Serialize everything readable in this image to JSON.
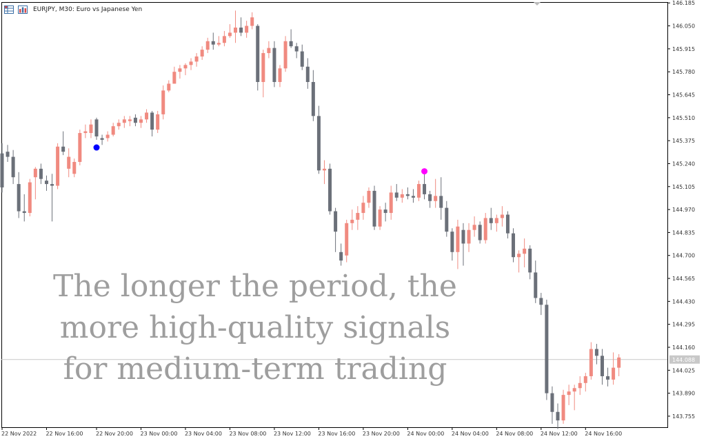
{
  "header": {
    "title": "EURJPY, M30:  Euro vs Japanese Yen",
    "icons": [
      "grid-icon",
      "bar-chart-icon"
    ]
  },
  "overlay_lines": [
    "The longer the period, the",
    "more high-quality signals",
    "for medium-term trading"
  ],
  "colors": {
    "bull": "#f08a80",
    "bear": "#6b7079",
    "buy_signal": "#0000ff",
    "sell_signal": "#ff00ff",
    "price_line": "#c8c8c8"
  },
  "chart_data": {
    "type": "candlestick",
    "symbol": "EURJPY",
    "timeframe": "M30",
    "ylim": [
      143.69,
      146.19
    ],
    "y_ticks": [
      "146.185",
      "146.050",
      "145.915",
      "145.780",
      "145.645",
      "145.510",
      "145.375",
      "145.240",
      "145.105",
      "144.970",
      "144.835",
      "144.700",
      "144.565",
      "144.430",
      "144.295",
      "144.160",
      "144.025",
      "143.890",
      "143.755"
    ],
    "current_price": "144.088",
    "x_ticks": [
      {
        "index": 0,
        "label": "22 Nov 2022"
      },
      {
        "index": 8,
        "label": "22 Nov 16:00"
      },
      {
        "index": 17,
        "label": "22 Nov 20:00"
      },
      {
        "index": 25,
        "label": "23 Nov 00:00"
      },
      {
        "index": 33,
        "label": "23 Nov 04:00"
      },
      {
        "index": 41,
        "label": "23 Nov 08:00"
      },
      {
        "index": 49,
        "label": "23 Nov 12:00"
      },
      {
        "index": 57,
        "label": "23 Nov 16:00"
      },
      {
        "index": 65,
        "label": "23 Nov 20:00"
      },
      {
        "index": 73,
        "label": "24 Nov 00:00"
      },
      {
        "index": 81,
        "label": "24 Nov 04:00"
      },
      {
        "index": 89,
        "label": "24 Nov 08:00"
      },
      {
        "index": 97,
        "label": "24 Nov 12:00"
      },
      {
        "index": 105,
        "label": "24 Nov 16:00"
      }
    ],
    "candles": [
      [
        145.3,
        145.36,
        145.07,
        145.1
      ],
      [
        145.31,
        145.35,
        145.25,
        145.28
      ],
      [
        145.28,
        145.32,
        145.12,
        145.16
      ],
      [
        145.12,
        145.19,
        144.92,
        144.96
      ],
      [
        144.96,
        145.06,
        144.9,
        144.95
      ],
      [
        144.95,
        145.15,
        144.93,
        145.13
      ],
      [
        145.16,
        145.22,
        145.03,
        145.21
      ],
      [
        145.21,
        145.24,
        145.12,
        145.15
      ],
      [
        145.14,
        145.17,
        145.08,
        145.12
      ],
      [
        145.12,
        145.18,
        144.9,
        145.11
      ],
      [
        145.11,
        145.36,
        145.09,
        145.34
      ],
      [
        145.34,
        145.43,
        145.29,
        145.31
      ],
      [
        145.21,
        145.33,
        145.16,
        145.28
      ],
      [
        145.18,
        145.27,
        145.16,
        145.25
      ],
      [
        145.25,
        145.44,
        145.23,
        145.42
      ],
      [
        145.42,
        145.47,
        145.39,
        145.43
      ],
      [
        145.42,
        145.5,
        145.39,
        145.47
      ],
      [
        145.5,
        145.51,
        145.38,
        145.4
      ],
      [
        145.39,
        145.41,
        145.35,
        145.38
      ],
      [
        145.39,
        145.43,
        145.37,
        145.41
      ],
      [
        145.41,
        145.48,
        145.4,
        145.46
      ],
      [
        145.46,
        145.5,
        145.44,
        145.48
      ],
      [
        145.48,
        145.52,
        145.45,
        145.5
      ],
      [
        145.49,
        145.52,
        145.46,
        145.5
      ],
      [
        145.51,
        145.53,
        145.46,
        145.48
      ],
      [
        145.48,
        145.52,
        145.45,
        145.5
      ],
      [
        145.5,
        145.56,
        145.48,
        145.54
      ],
      [
        145.54,
        145.55,
        145.4,
        145.44
      ],
      [
        145.44,
        145.55,
        145.42,
        145.53
      ],
      [
        145.53,
        145.7,
        145.5,
        145.67
      ],
      [
        145.67,
        145.73,
        145.66,
        145.71
      ],
      [
        145.71,
        145.81,
        145.71,
        145.78
      ],
      [
        145.78,
        145.82,
        145.74,
        145.8
      ],
      [
        145.8,
        145.83,
        145.76,
        145.82
      ],
      [
        145.82,
        145.86,
        145.79,
        145.84
      ],
      [
        145.84,
        145.89,
        145.81,
        145.87
      ],
      [
        145.87,
        145.93,
        145.85,
        145.91
      ],
      [
        145.91,
        145.98,
        145.89,
        145.96
      ],
      [
        145.96,
        146.01,
        145.91,
        145.94
      ],
      [
        145.94,
        145.99,
        145.93,
        145.95
      ],
      [
        145.95,
        146.02,
        145.93,
        145.99
      ],
      [
        145.99,
        146.06,
        145.98,
        146.01
      ],
      [
        146.01,
        146.14,
        145.95,
        146.04
      ],
      [
        146.04,
        146.1,
        145.99,
        146.01
      ],
      [
        146.01,
        146.08,
        145.98,
        146.05
      ],
      [
        146.05,
        146.13,
        146.03,
        146.1
      ],
      [
        146.05,
        146.06,
        145.67,
        145.72
      ],
      [
        145.72,
        145.91,
        145.63,
        145.89
      ],
      [
        145.89,
        145.96,
        145.86,
        145.92
      ],
      [
        145.92,
        145.96,
        145.69,
        145.72
      ],
      [
        145.72,
        145.82,
        145.69,
        145.8
      ],
      [
        145.8,
        145.99,
        145.78,
        145.96
      ],
      [
        145.96,
        146.03,
        145.92,
        145.93
      ],
      [
        145.93,
        145.95,
        145.86,
        145.9
      ],
      [
        145.9,
        145.94,
        145.79,
        145.81
      ],
      [
        145.81,
        145.86,
        145.68,
        145.72
      ],
      [
        145.72,
        145.79,
        145.49,
        145.52
      ],
      [
        145.52,
        145.58,
        145.18,
        145.2
      ],
      [
        145.2,
        145.26,
        145.12,
        145.21
      ],
      [
        145.21,
        145.24,
        144.94,
        144.96
      ],
      [
        144.96,
        144.98,
        144.72,
        144.84
      ],
      [
        144.72,
        144.77,
        144.64,
        144.67
      ],
      [
        144.7,
        144.91,
        144.66,
        144.89
      ],
      [
        144.89,
        144.97,
        144.85,
        144.91
      ],
      [
        144.91,
        144.99,
        144.85,
        144.95
      ],
      [
        144.95,
        145.05,
        144.91,
        145.01
      ],
      [
        145.01,
        145.1,
        144.98,
        145.08
      ],
      [
        145.08,
        145.11,
        144.85,
        144.87
      ],
      [
        144.87,
        144.99,
        144.85,
        144.97
      ],
      [
        144.97,
        145.01,
        144.9,
        144.95
      ],
      [
        144.95,
        145.11,
        144.91,
        145.07
      ],
      [
        145.07,
        145.12,
        145.02,
        145.04
      ],
      [
        145.04,
        145.09,
        145.01,
        145.06
      ],
      [
        145.06,
        145.1,
        145.03,
        145.05
      ],
      [
        145.05,
        145.09,
        145.01,
        145.04
      ],
      [
        145.04,
        145.14,
        145.02,
        145.12
      ],
      [
        145.12,
        145.19,
        145.03,
        145.06
      ],
      [
        145.06,
        145.08,
        144.98,
        145.02
      ],
      [
        145.02,
        145.15,
        144.98,
        145.05
      ],
      [
        145.05,
        145.16,
        144.91,
        144.98
      ],
      [
        144.98,
        145.02,
        144.81,
        144.84
      ],
      [
        144.84,
        144.86,
        144.67,
        144.72
      ],
      [
        144.72,
        144.91,
        144.62,
        144.87
      ],
      [
        144.85,
        144.89,
        144.64,
        144.77
      ],
      [
        144.77,
        144.89,
        144.72,
        144.85
      ],
      [
        144.85,
        144.93,
        144.81,
        144.88
      ],
      [
        144.88,
        144.9,
        144.77,
        144.79
      ],
      [
        144.79,
        144.95,
        144.77,
        144.92
      ],
      [
        144.92,
        144.98,
        144.85,
        144.89
      ],
      [
        144.89,
        144.94,
        144.84,
        144.92
      ],
      [
        144.92,
        144.99,
        144.87,
        144.94
      ],
      [
        144.94,
        144.96,
        144.8,
        144.83
      ],
      [
        144.83,
        144.86,
        144.66,
        144.69
      ],
      [
        144.69,
        144.73,
        144.6,
        144.71
      ],
      [
        144.71,
        144.8,
        144.63,
        144.74
      ],
      [
        144.74,
        144.76,
        144.56,
        144.6
      ],
      [
        144.6,
        144.67,
        144.42,
        144.45
      ],
      [
        144.45,
        144.48,
        144.35,
        144.41
      ],
      [
        144.41,
        144.44,
        143.85,
        143.89
      ],
      [
        143.89,
        143.93,
        143.71,
        143.78
      ],
      [
        143.78,
        143.83,
        143.68,
        143.73
      ],
      [
        143.73,
        143.91,
        143.71,
        143.88
      ],
      [
        143.88,
        143.94,
        143.82,
        143.9
      ],
      [
        143.9,
        143.94,
        143.79,
        143.92
      ],
      [
        143.92,
        143.99,
        143.88,
        143.95
      ],
      [
        143.95,
        144.01,
        143.9,
        143.99
      ],
      [
        143.99,
        144.19,
        143.97,
        144.15
      ],
      [
        144.15,
        144.18,
        144.06,
        144.11
      ],
      [
        144.11,
        144.15,
        143.94,
        143.99
      ],
      [
        143.99,
        144.04,
        143.93,
        143.97
      ],
      [
        143.97,
        144.13,
        143.94,
        144.04
      ],
      [
        144.04,
        144.12,
        143.99,
        144.1
      ]
    ],
    "signals": [
      {
        "type": "buy",
        "index": 17,
        "price": 145.335
      },
      {
        "type": "sell",
        "index": 76,
        "price": 145.195
      }
    ]
  }
}
